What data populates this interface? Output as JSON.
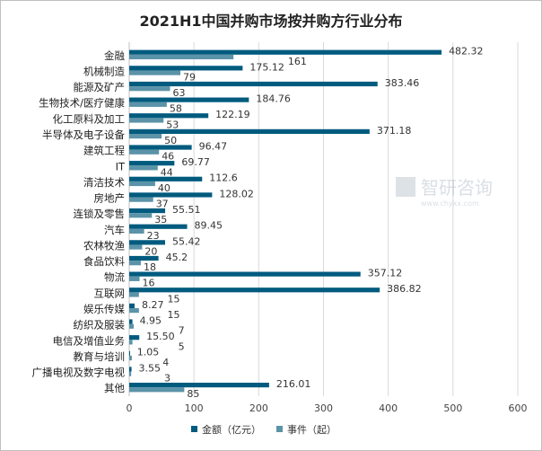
{
  "chart_data": {
    "type": "bar",
    "orientation": "horizontal",
    "title": "2021H1中国并购市场按并购方行业分布",
    "categories": [
      "金融",
      "机械制造",
      "能源及矿产",
      "生物技术/医疗健康",
      "化工原料及加工",
      "半导体及电子设备",
      "建筑工程",
      "IT",
      "清洁技术",
      "房地产",
      "连锁及零售",
      "汽车",
      "农林牧渔",
      "食品饮料",
      "物流",
      "互联网",
      "娱乐传媒",
      "纺织及服装",
      "电信及增值业务",
      "教育与培训",
      "广播电视及数字电视",
      "其他"
    ],
    "series": [
      {
        "name": "金额（亿元）",
        "color": "#005b7f",
        "values": [
          482.32,
          175.12,
          383.46,
          184.76,
          122.19,
          371.18,
          96.47,
          69.77,
          112.6,
          128.02,
          55.51,
          89.45,
          55.42,
          45.2,
          357.12,
          386.82,
          8.27,
          4.95,
          15.5,
          1.05,
          3.55,
          216.01
        ],
        "labels": [
          "482.32",
          "175.12",
          "383.46",
          "184.76",
          "122.19",
          "371.18",
          "96.47",
          "69.77",
          "112.6",
          "128.02",
          "55.51",
          "89.45",
          "55.42",
          "45.2",
          "357.12",
          "386.82",
          "8.27",
          "4.95",
          "15.50",
          "1.05",
          "3.55",
          "216.01"
        ]
      },
      {
        "name": "事件（起）",
        "color": "#5b93a8",
        "values": [
          161,
          79,
          63,
          58,
          53,
          50,
          46,
          44,
          40,
          37,
          35,
          23,
          20,
          18,
          16,
          15,
          15,
          7,
          5,
          4,
          3,
          85
        ],
        "labels": [
          "161",
          "79",
          "63",
          "58",
          "53",
          "50",
          "46",
          "44",
          "40",
          "37",
          "35",
          "23",
          "20",
          "18",
          "16",
          "15",
          "15",
          "7",
          "5",
          "4",
          "3",
          "85"
        ]
      }
    ],
    "xlim": [
      0,
      600
    ],
    "xticks": [
      "0",
      "100",
      "200",
      "300",
      "400",
      "500",
      "600"
    ],
    "grid": true,
    "legend": "bottom"
  },
  "watermark": "智研咨询 www.chyxx.com"
}
